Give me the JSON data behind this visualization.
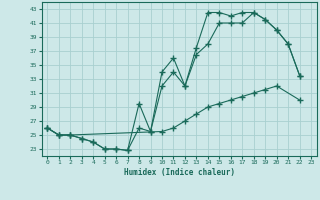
{
  "xlabel": "Humidex (Indice chaleur)",
  "background_color": "#cde8e8",
  "grid_color": "#a8d0d0",
  "line_color": "#1a6a5a",
  "xlim": [
    -0.5,
    23.5
  ],
  "ylim": [
    22,
    44
  ],
  "yticks": [
    23,
    25,
    27,
    29,
    31,
    33,
    35,
    37,
    39,
    41,
    43
  ],
  "xticks": [
    0,
    1,
    2,
    3,
    4,
    5,
    6,
    7,
    8,
    9,
    10,
    11,
    12,
    13,
    14,
    15,
    16,
    17,
    18,
    19,
    20,
    21,
    22,
    23
  ],
  "line1_x": [
    0,
    1,
    2,
    3,
    4,
    5,
    6,
    7,
    8,
    9,
    10,
    11,
    12,
    13,
    14,
    15,
    16,
    17,
    18,
    19,
    20,
    21,
    22
  ],
  "line1_y": [
    26,
    25,
    25,
    24.5,
    24,
    23,
    23,
    22.8,
    29.5,
    25.5,
    34,
    36,
    32,
    37.5,
    42.5,
    42.5,
    42,
    42.5,
    42.5,
    41.5,
    40,
    38,
    33.5
  ],
  "line2_x": [
    0,
    1,
    2,
    3,
    4,
    5,
    6,
    7,
    8,
    9,
    10,
    11,
    12,
    13,
    14,
    15,
    16,
    17,
    18,
    19,
    20,
    21,
    22
  ],
  "line2_y": [
    26,
    25,
    25,
    24.5,
    24,
    23,
    23,
    22.8,
    26,
    25.5,
    32,
    34,
    32,
    36.5,
    38,
    41,
    41,
    41,
    42.5,
    41.5,
    40,
    38,
    33.5
  ],
  "line3_x": [
    0,
    1,
    2,
    10,
    11,
    12,
    13,
    14,
    15,
    16,
    17,
    18,
    19,
    20,
    22
  ],
  "line3_y": [
    26,
    25,
    25,
    25.5,
    26,
    27,
    28,
    29,
    29.5,
    30,
    30.5,
    31,
    31.5,
    32,
    30
  ]
}
